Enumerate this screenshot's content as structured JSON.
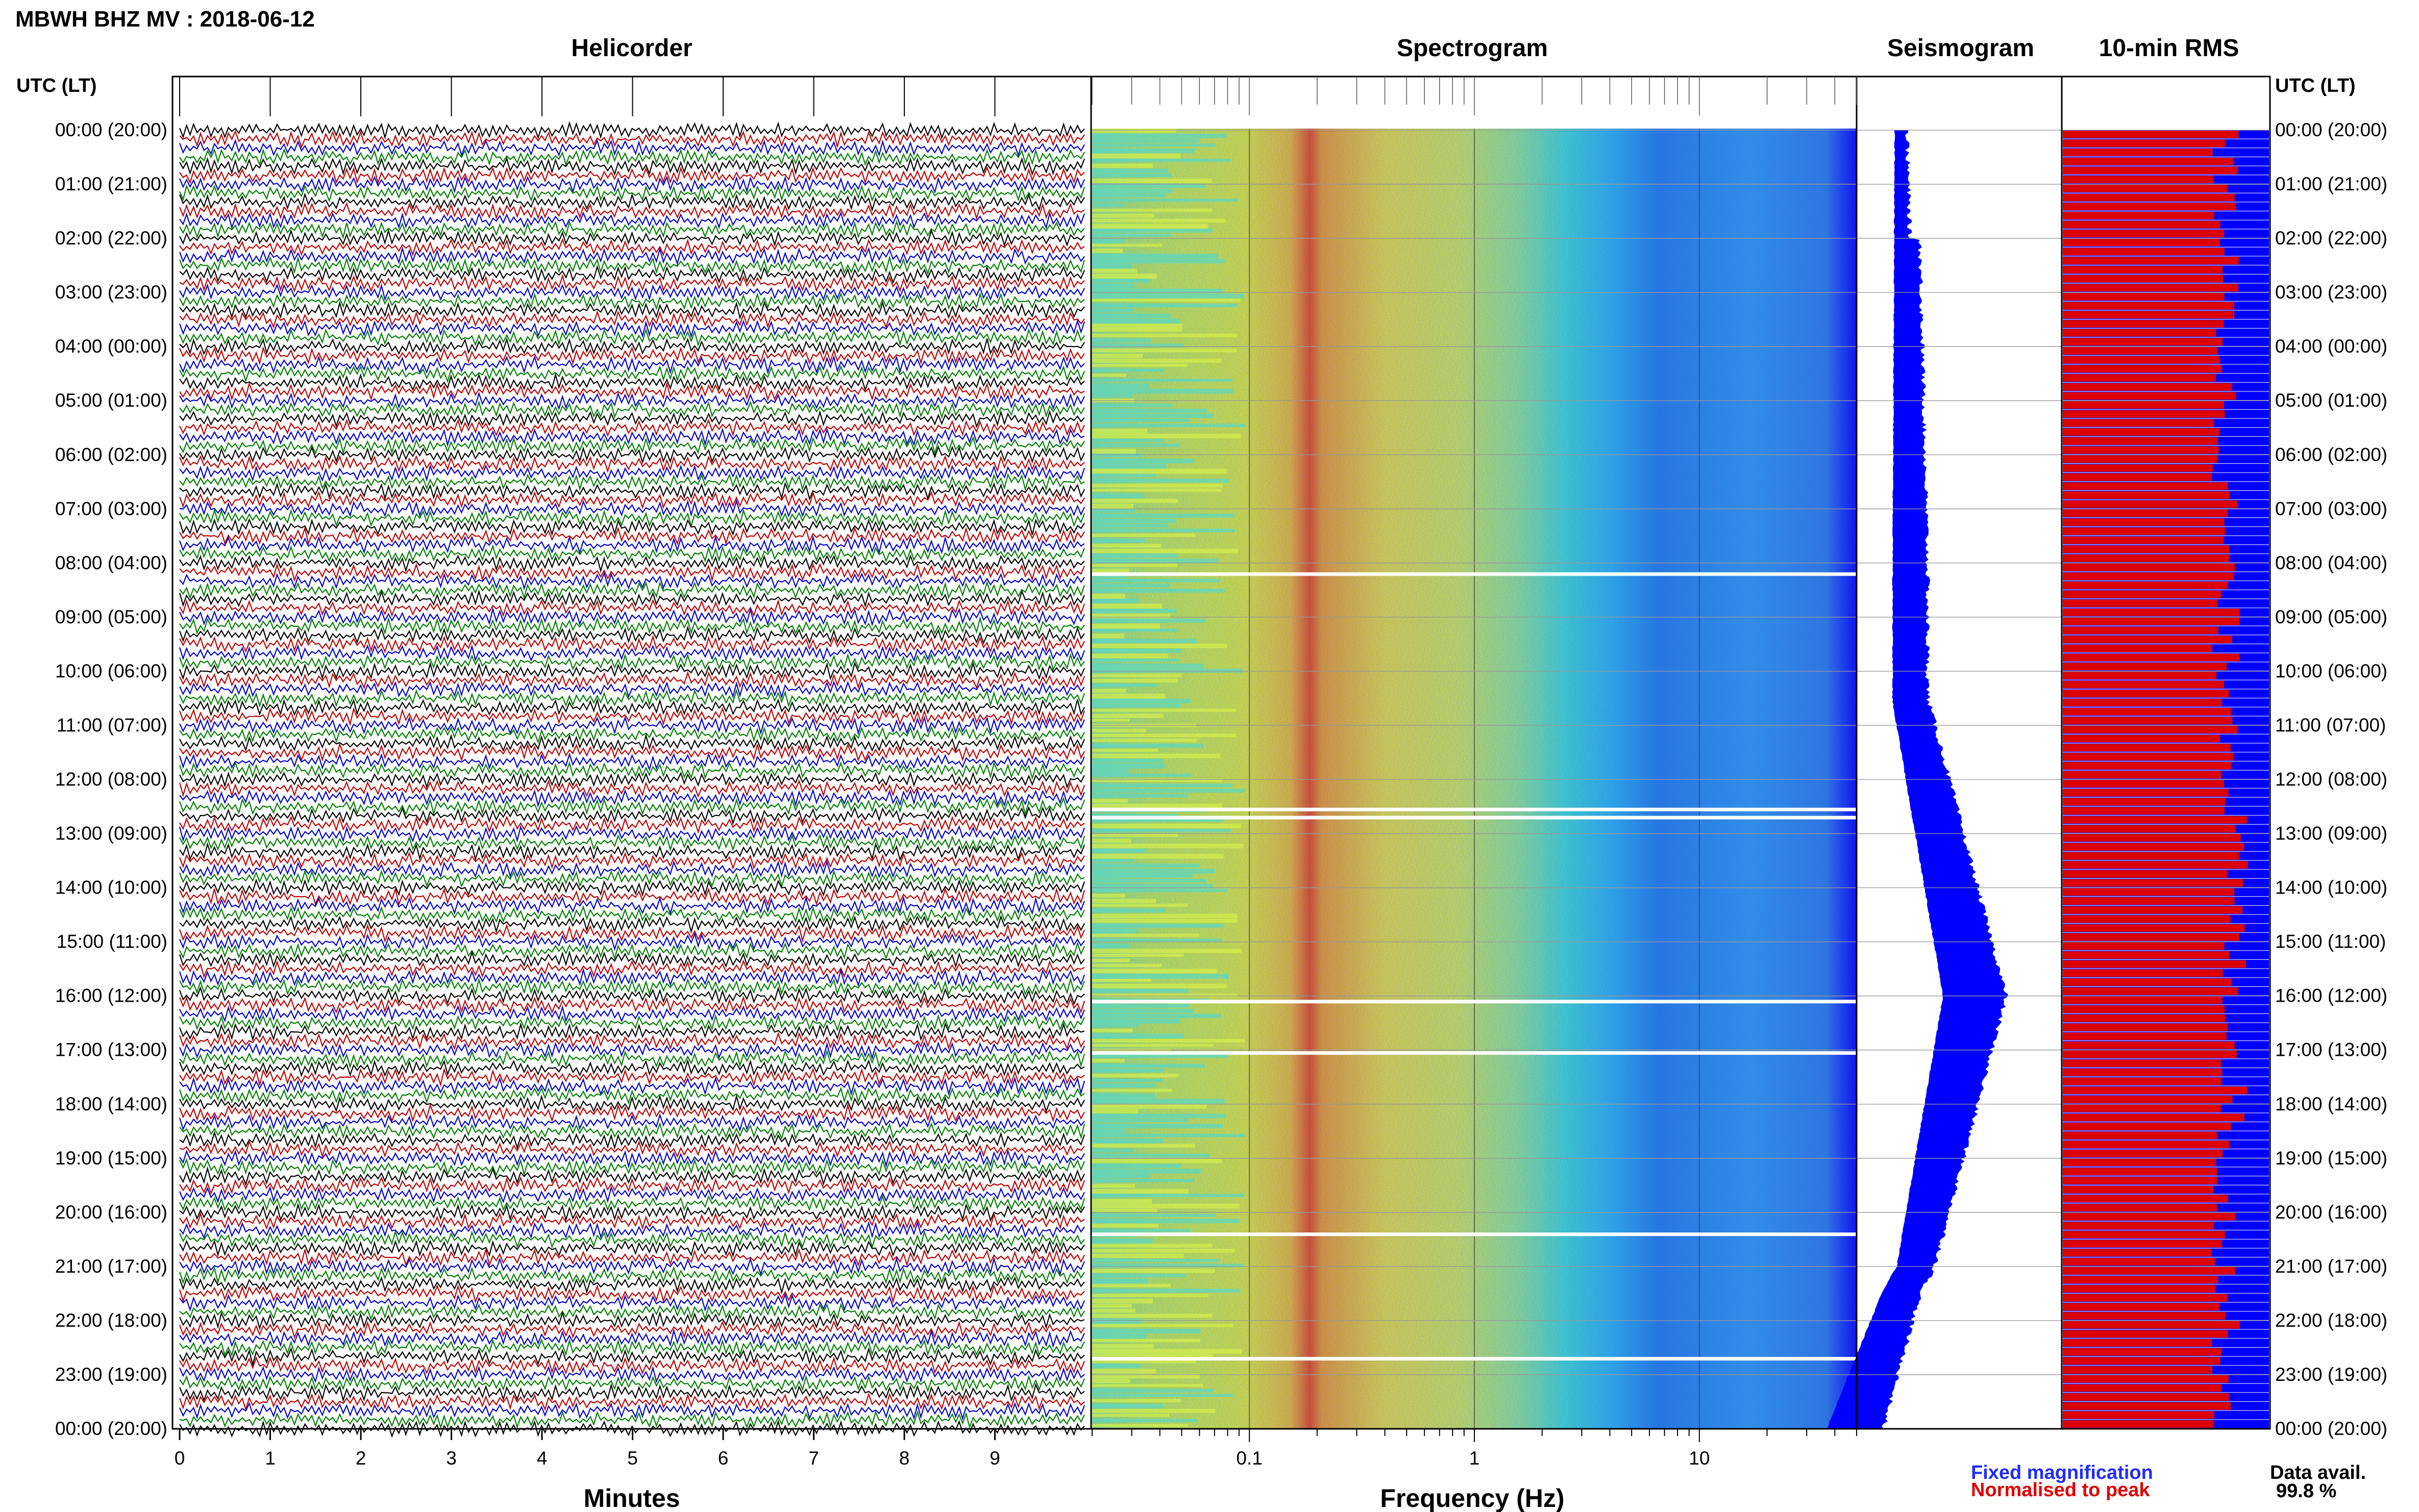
{
  "header": {
    "title": "MBWH BHZ MV : 2018-06-12",
    "utc_label_left": "UTC (LT)",
    "utc_label_right": "UTC (LT)"
  },
  "panels": {
    "helicorder": "Helicorder",
    "spectrogram": "Spectrogram",
    "seismogram": "Seismogram",
    "rms": "10-min RMS"
  },
  "footer": {
    "minutes_label": "Minutes",
    "frequency_label": "Frequency (Hz)",
    "legend_fixed": "Fixed magnification",
    "legend_normalised": "Normalised to peak",
    "data_avail_label": "Data avail.",
    "data_avail_value": "99.8 %"
  },
  "colors": {
    "helicorder_traces": [
      "#000000",
      "#c00000",
      "#0000cc",
      "#008000"
    ],
    "seismogram": "#0000ff",
    "rms_fixed": "#0000ff",
    "rms_normalised": "#dd0000",
    "gridline": "#999999",
    "gap": "#ffffff"
  },
  "chart_data": [
    {
      "type": "line",
      "name": "helicorder",
      "x_label": "Minutes",
      "x_ticks": [
        0,
        1,
        2,
        3,
        4,
        5,
        6,
        7,
        8,
        9
      ],
      "xlim": [
        0,
        10
      ],
      "y_labels": [
        "00:00 (20:00)",
        "01:00 (21:00)",
        "02:00 (22:00)",
        "03:00 (23:00)",
        "04:00 (00:00)",
        "05:00 (01:00)",
        "06:00 (02:00)",
        "07:00 (03:00)",
        "08:00 (04:00)",
        "09:00 (05:00)",
        "10:00 (06:00)",
        "11:00 (07:00)",
        "12:00 (08:00)",
        "13:00 (09:00)",
        "14:00 (10:00)",
        "15:00 (11:00)",
        "16:00 (12:00)",
        "17:00 (13:00)",
        "18:00 (14:00)",
        "19:00 (15:00)",
        "20:00 (16:00)",
        "21:00 (17:00)",
        "22:00 (18:00)",
        "23:00 (19:00)",
        "00:00 (20:00)"
      ],
      "lines_per_hour": 6,
      "trace_colors_cycle": [
        "black",
        "red",
        "blue",
        "green"
      ]
    },
    {
      "type": "heatmap",
      "name": "spectrogram",
      "x_label": "Frequency (Hz)",
      "x_scale": "log",
      "xlim": [
        0.02,
        50
      ],
      "x_tick_labels": [
        "0.1",
        "1",
        "10"
      ],
      "y_labels": "same as helicorder",
      "dominant_band_hz": [
        0.2,
        0.35
      ],
      "colormap": "jet",
      "gaps_utc_hours": [
        8.2,
        12.55,
        12.7,
        16.1,
        17.05,
        20.4,
        22.7
      ]
    },
    {
      "type": "line",
      "name": "seismogram",
      "orientation": "vertical",
      "y_labels": "same as helicorder",
      "peak_utc_hour": 16,
      "color": "blue"
    },
    {
      "type": "bar",
      "name": "10-min RMS",
      "orientation": "horizontal",
      "bars": 144,
      "series": [
        {
          "name": "Fixed magnification",
          "color": "blue"
        },
        {
          "name": "Normalised to peak",
          "color": "red"
        }
      ]
    }
  ]
}
